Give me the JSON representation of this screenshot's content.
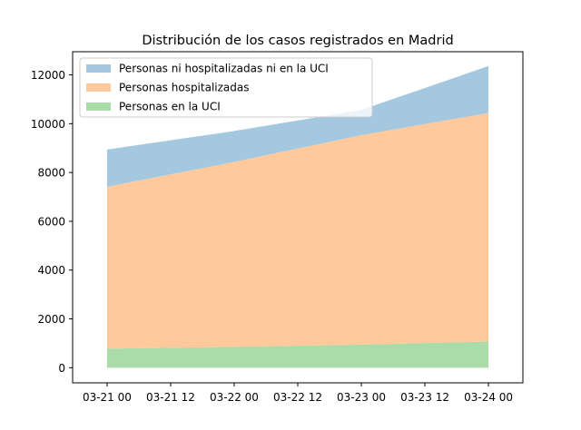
{
  "chart_data": {
    "type": "area",
    "stacked": true,
    "title": "Distribución de los casos registrados en Madrid",
    "xlabel": "",
    "ylabel": "",
    "x_ticks": [
      "03-21 00",
      "03-21 12",
      "03-22 00",
      "03-22 12",
      "03-23 00",
      "03-23 12",
      "03-24 00"
    ],
    "x_range_hours": [
      -6.5,
      78.5
    ],
    "x_hours": [
      0,
      24,
      48,
      72
    ],
    "ylim": [
      -620,
      12950
    ],
    "y_ticks": [
      0,
      2000,
      4000,
      6000,
      8000,
      10000,
      12000
    ],
    "legend_position": "upper left",
    "series": [
      {
        "name": "Personas en la UCI",
        "color": "#aadca9",
        "values": [
          781,
          856,
          947,
          1073
        ]
      },
      {
        "name": "Personas hospitalizadas",
        "color": "#ffc99c",
        "values": [
          6631,
          7575,
          8583,
          9363
        ]
      },
      {
        "name": "Personas ni hospitalizadas ni en la UCI",
        "color": "#a5c8e1",
        "values": [
          1528,
          1269,
          1034,
          1927
        ]
      }
    ],
    "legend_order": [
      2,
      1,
      0
    ]
  }
}
